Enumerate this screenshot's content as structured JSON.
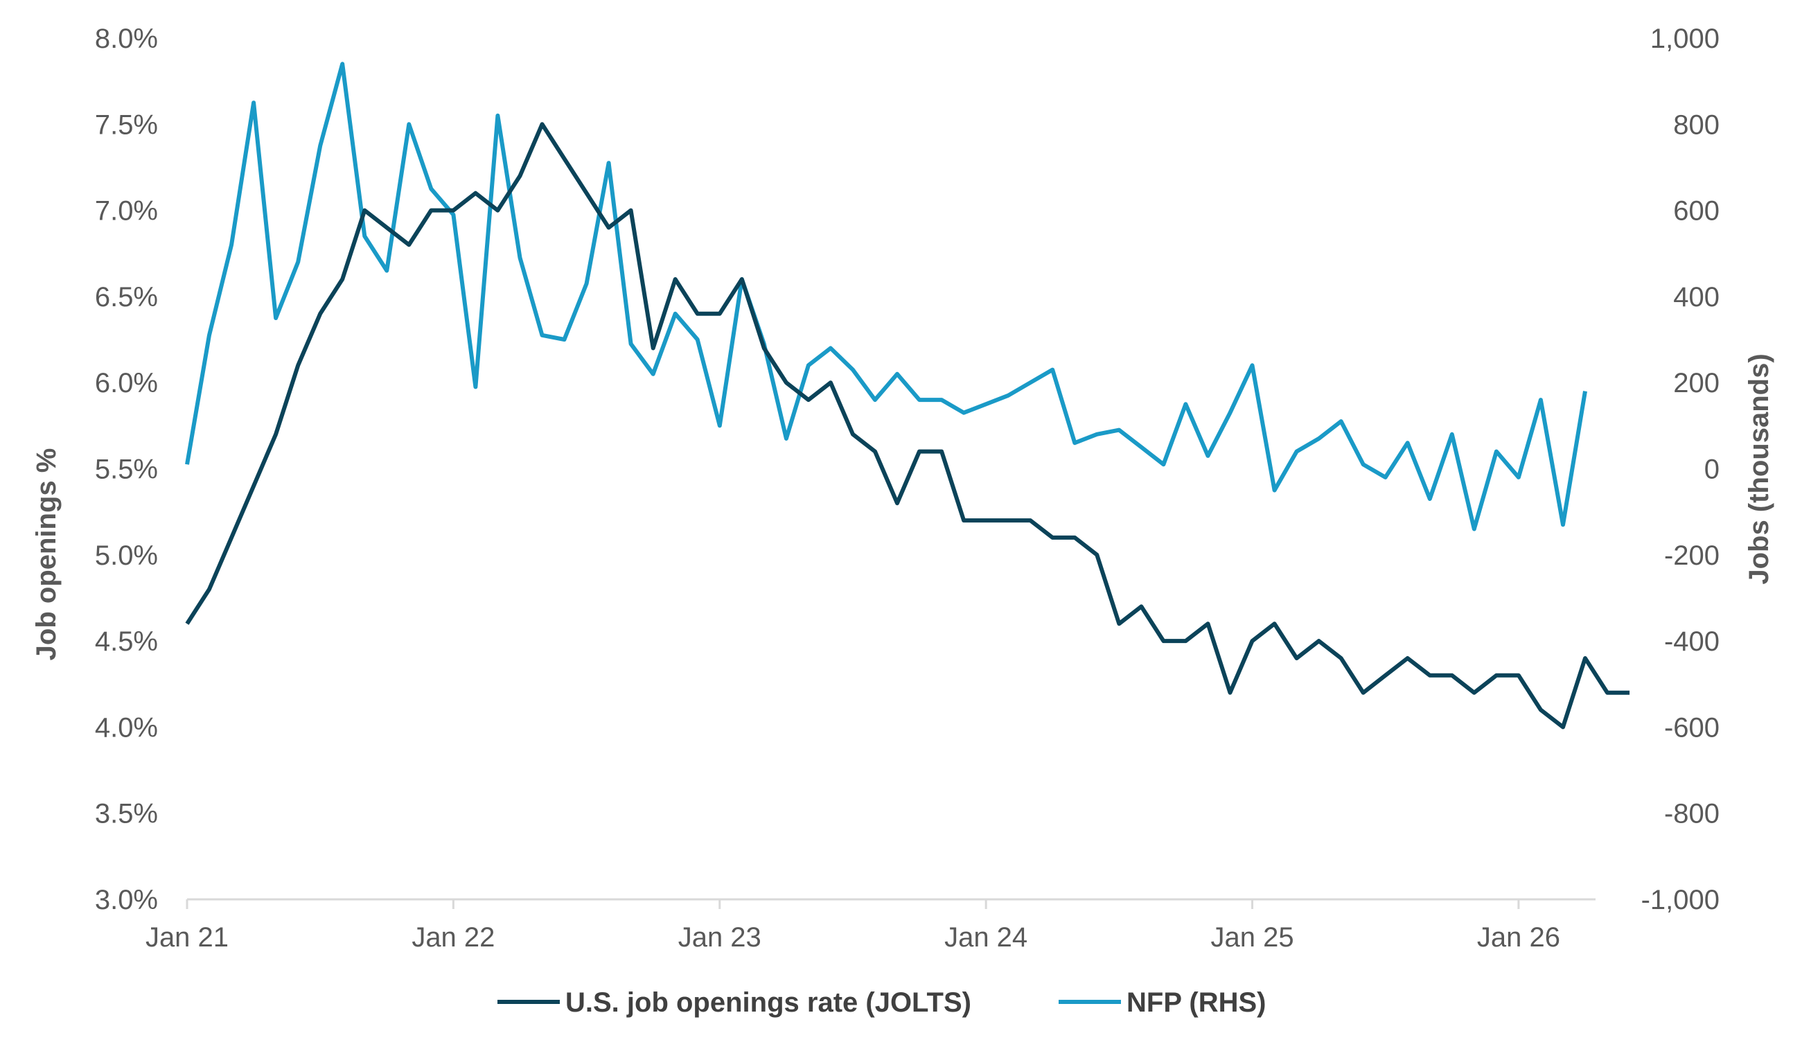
{
  "chart_data": {
    "type": "line",
    "title": "",
    "x_label_every": 12,
    "x_tick_labels": [
      "Jan 21",
      "Jan 22",
      "Jan 23",
      "Jan 24",
      "Jan 25",
      "Jan 26"
    ],
    "y_left": {
      "label": "Job openings %",
      "range": [
        3.0,
        8.0
      ],
      "ticks": [
        "3.0%",
        "3.5%",
        "4.0%",
        "4.5%",
        "5.0%",
        "5.5%",
        "6.0%",
        "6.5%",
        "7.0%",
        "7.5%",
        "8.0%"
      ]
    },
    "y_right": {
      "label": "Jobs (thousands)",
      "range": [
        -1000,
        1000
      ],
      "ticks": [
        "-1,000",
        "-800",
        "-600",
        "-400",
        "-200",
        "0",
        "200",
        "400",
        "600",
        "800",
        "1,000"
      ]
    },
    "grid": false,
    "legend_position": "bottom",
    "series": [
      {
        "name": "U.S. job openings rate (JOLTS)",
        "axis": "left",
        "color": "#0b4359",
        "values": [
          4.6,
          4.8,
          5.1,
          5.4,
          5.7,
          6.1,
          6.4,
          6.6,
          7.0,
          6.9,
          6.8,
          7.0,
          7.0,
          7.1,
          7.0,
          7.2,
          7.5,
          7.3,
          7.1,
          6.9,
          7.0,
          6.2,
          6.6,
          6.4,
          6.4,
          6.6,
          6.2,
          6.0,
          5.9,
          6.0,
          5.7,
          5.6,
          5.3,
          5.6,
          5.6,
          5.2,
          5.2,
          5.2,
          5.2,
          5.1,
          5.1,
          5.0,
          4.6,
          4.7,
          4.5,
          4.5,
          4.6,
          4.2,
          4.5,
          4.6,
          4.4,
          4.5,
          4.4,
          4.2,
          4.3,
          4.4,
          4.3,
          4.3,
          4.2,
          4.3,
          4.3,
          4.1,
          4.0,
          4.4,
          4.2,
          4.2
        ]
      },
      {
        "name": "NFP (RHS)",
        "axis": "right",
        "color": "#1a9ac7",
        "values": [
          10,
          310,
          520,
          850,
          350,
          480,
          750,
          940,
          540,
          460,
          800,
          650,
          590,
          190,
          820,
          490,
          310,
          300,
          430,
          710,
          290,
          220,
          360,
          300,
          100,
          440,
          290,
          70,
          240,
          280,
          230,
          160,
          220,
          160,
          160,
          130,
          150,
          170,
          200,
          230,
          60,
          80,
          90,
          50,
          10,
          150,
          30,
          130,
          240,
          -50,
          40,
          70,
          110,
          10,
          -20,
          60,
          -70,
          80,
          -140,
          40,
          -20,
          160,
          -130,
          180
        ]
      }
    ]
  }
}
